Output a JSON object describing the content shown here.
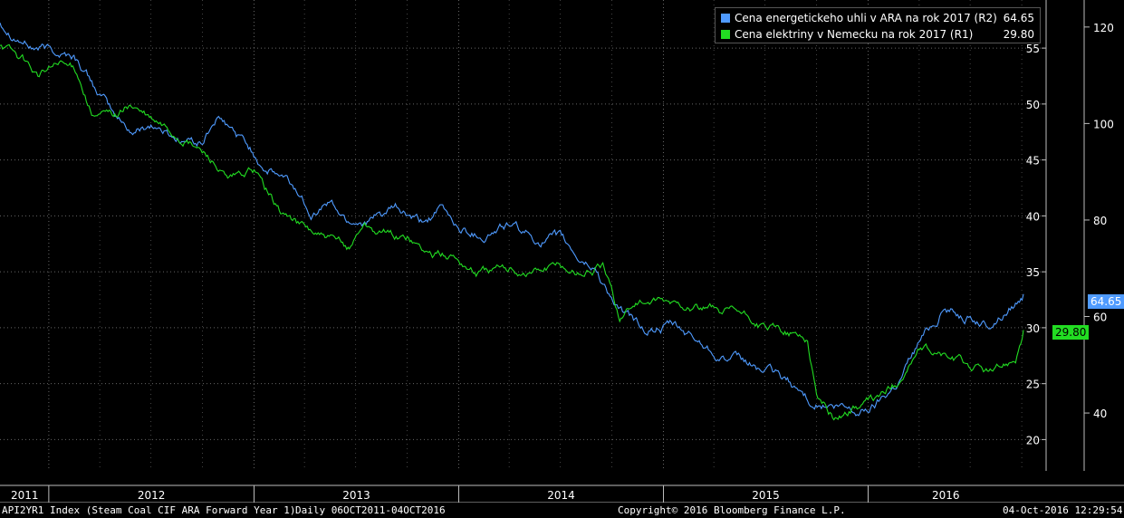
{
  "chart_data": {
    "type": "line",
    "title": "",
    "x_range": [
      "2011-10-06",
      "2016-10-04"
    ],
    "x_tick_labels": [
      "2011",
      "2012",
      "2013",
      "2014",
      "2015",
      "2016"
    ],
    "left_axis": {
      "ticks": [
        "55",
        "50",
        "45",
        "40",
        "35",
        "30",
        "25",
        "20"
      ],
      "range": [
        17.2,
        59.3
      ]
    },
    "right_axis": {
      "ticks": [
        "120",
        "100",
        "80",
        "60",
        "40"
      ],
      "range": [
        28.0,
        125.6
      ]
    },
    "grid": true,
    "legend_position": "top-right",
    "series": [
      {
        "name": "Cena energetickeho uhli v ARA na rok 2017 (R2)",
        "axis": "R2",
        "color": "#4f9bff",
        "last_value": "64.65",
        "points": [
          [
            "2011-10-06",
            121
          ],
          [
            "2011-12-01",
            116
          ],
          [
            "2012-01-15",
            115
          ],
          [
            "2012-02-15",
            114
          ],
          [
            "2012-03-20",
            108
          ],
          [
            "2012-04-30",
            101
          ],
          [
            "2012-06-01",
            98
          ],
          [
            "2012-07-01",
            100
          ],
          [
            "2012-08-15",
            97
          ],
          [
            "2012-10-01",
            96
          ],
          [
            "2012-10-25",
            101
          ],
          [
            "2012-12-15",
            96
          ],
          [
            "2013-01-20",
            91
          ],
          [
            "2013-03-01",
            88
          ],
          [
            "2013-04-15",
            82
          ],
          [
            "2013-05-15",
            84
          ],
          [
            "2013-06-15",
            80
          ],
          [
            "2013-08-01",
            80
          ],
          [
            "2013-09-10",
            82
          ],
          [
            "2013-10-25",
            79
          ],
          [
            "2013-12-01",
            82
          ],
          [
            "2014-01-05",
            78
          ],
          [
            "2014-02-15",
            77
          ],
          [
            "2014-04-01",
            79
          ],
          [
            "2014-05-15",
            76
          ],
          [
            "2014-07-01",
            76
          ],
          [
            "2014-08-01",
            72
          ],
          [
            "2014-09-01",
            70
          ],
          [
            "2014-10-15",
            61
          ],
          [
            "2014-12-01",
            57
          ],
          [
            "2015-01-15",
            58
          ],
          [
            "2015-03-01",
            55
          ],
          [
            "2015-04-15",
            52
          ],
          [
            "2015-06-01",
            50
          ],
          [
            "2015-07-15",
            48
          ],
          [
            "2015-08-15",
            46
          ],
          [
            "2015-09-15",
            43
          ],
          [
            "2015-11-01",
            41
          ],
          [
            "2015-12-15",
            40
          ],
          [
            "2016-01-15",
            42
          ],
          [
            "2016-02-25",
            47
          ],
          [
            "2016-04-01",
            55
          ],
          [
            "2016-05-15",
            62
          ],
          [
            "2016-07-01",
            60
          ],
          [
            "2016-08-01",
            58
          ],
          [
            "2016-09-01",
            61
          ],
          [
            "2016-10-04",
            64.65
          ]
        ]
      },
      {
        "name": "Cena elektriny v Nemecku na rok 2017 (R1)",
        "axis": "R1",
        "color": "#22dd22",
        "last_value": "29.80",
        "points": [
          [
            "2011-10-06",
            55.5
          ],
          [
            "2011-11-15",
            54
          ],
          [
            "2011-12-15",
            52.5
          ],
          [
            "2012-01-15",
            53.5
          ],
          [
            "2012-02-20",
            53
          ],
          [
            "2012-03-20",
            49
          ],
          [
            "2012-04-30",
            49
          ],
          [
            "2012-05-25",
            50
          ],
          [
            "2012-07-01",
            48.5
          ],
          [
            "2012-09-01",
            46.8
          ],
          [
            "2012-10-20",
            45
          ],
          [
            "2012-11-15",
            43
          ],
          [
            "2013-01-01",
            44
          ],
          [
            "2013-02-15",
            40.5
          ],
          [
            "2013-04-01",
            39
          ],
          [
            "2013-05-15",
            37.8
          ],
          [
            "2013-06-20",
            37
          ],
          [
            "2013-07-15",
            39.5
          ],
          [
            "2013-08-15",
            38.5
          ],
          [
            "2013-10-01",
            38
          ],
          [
            "2013-11-15",
            36.5
          ],
          [
            "2013-12-20",
            36.5
          ],
          [
            "2014-02-01",
            35
          ],
          [
            "2014-03-10",
            35.2
          ],
          [
            "2014-05-01",
            35
          ],
          [
            "2014-06-20",
            35.5
          ],
          [
            "2014-08-01",
            35
          ],
          [
            "2014-09-15",
            35.5
          ],
          [
            "2014-10-15",
            31
          ],
          [
            "2014-11-15",
            32.5
          ],
          [
            "2015-01-01",
            32
          ],
          [
            "2015-02-15",
            32
          ],
          [
            "2015-04-01",
            31.5
          ],
          [
            "2015-05-15",
            31.2
          ],
          [
            "2015-07-01",
            30
          ],
          [
            "2015-08-15",
            29.5
          ],
          [
            "2015-09-15",
            29
          ],
          [
            "2015-10-01",
            24
          ],
          [
            "2015-11-01",
            22
          ],
          [
            "2015-12-15",
            23
          ],
          [
            "2016-01-15",
            23.5
          ],
          [
            "2016-02-20",
            25
          ],
          [
            "2016-04-01",
            28
          ],
          [
            "2016-05-15",
            27.5
          ],
          [
            "2016-07-01",
            26.5
          ],
          [
            "2016-08-15",
            26
          ],
          [
            "2016-09-20",
            27.5
          ],
          [
            "2016-10-04",
            29.8
          ]
        ]
      }
    ]
  },
  "footer": {
    "index": "API2YR1 Index (Steam Coal CIF ARA Forward Year 1)",
    "range": "Daily 06OCT2011-04OCT2016",
    "copyright": "Copyright© 2016 Bloomberg Finance L.P.",
    "timestamp": "04-Oct-2016 12:29:54"
  }
}
